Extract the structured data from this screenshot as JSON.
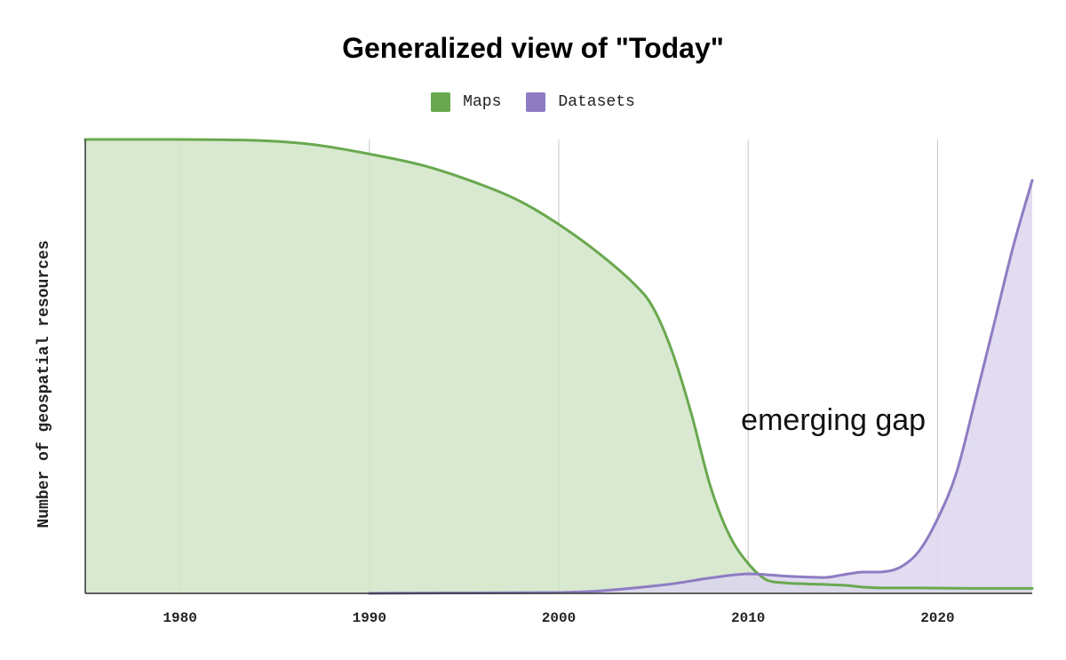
{
  "chart_data": {
    "type": "area",
    "title": "Generalized view of \"Today\"",
    "xlabel": "",
    "ylabel": "Number of geospatial resources",
    "x_ticks": [
      1980,
      1990,
      2000,
      2010,
      2020
    ],
    "xlim": [
      1975,
      2025
    ],
    "ylim": [
      0,
      100
    ],
    "y_tick_labels": false,
    "grid": "vertical",
    "legend": "top-center",
    "series": [
      {
        "name": "Maps",
        "color": "#6aa84f",
        "fill": "#d1e5c8",
        "points": [
          [
            1975,
            100
          ],
          [
            1980,
            100
          ],
          [
            1984,
            99.8
          ],
          [
            1987,
            98.9
          ],
          [
            1990,
            96.8
          ],
          [
            1993,
            94.1
          ],
          [
            1996,
            89.9
          ],
          [
            1998,
            86.3
          ],
          [
            2000,
            81.3
          ],
          [
            2002,
            75.3
          ],
          [
            2004,
            68.1
          ],
          [
            2005,
            62.8
          ],
          [
            2006,
            53.1
          ],
          [
            2007,
            39.6
          ],
          [
            2008,
            23.7
          ],
          [
            2009,
            12.9
          ],
          [
            2010,
            6.6
          ],
          [
            2011,
            2.9
          ],
          [
            2012,
            2.3
          ],
          [
            2013,
            2.1
          ],
          [
            2015,
            1.8
          ],
          [
            2016,
            1.4
          ],
          [
            2017,
            1.2
          ],
          [
            2019,
            1.2
          ],
          [
            2022,
            1.1
          ],
          [
            2025,
            1.1
          ]
        ]
      },
      {
        "name": "Datasets",
        "color": "#8e7cc3",
        "fill": "#dcd6ed",
        "points": [
          [
            1990,
            0
          ],
          [
            1995,
            0.1
          ],
          [
            2000,
            0.2
          ],
          [
            2002,
            0.5
          ],
          [
            2004,
            1.2
          ],
          [
            2006,
            2.1
          ],
          [
            2008,
            3.4
          ],
          [
            2010,
            4.3
          ],
          [
            2012,
            3.8
          ],
          [
            2014,
            3.5
          ],
          [
            2015,
            4.1
          ],
          [
            2016,
            4.7
          ],
          [
            2017,
            4.7
          ],
          [
            2018,
            5.7
          ],
          [
            2019,
            9.2
          ],
          [
            2020,
            16.4
          ],
          [
            2021,
            26.6
          ],
          [
            2022,
            42.8
          ],
          [
            2023,
            59.6
          ],
          [
            2024,
            76.5
          ],
          [
            2025,
            91
          ]
        ]
      }
    ],
    "annotations": [
      {
        "text": "emerging gap",
        "x": 2014.5,
        "y": 36
      }
    ]
  }
}
